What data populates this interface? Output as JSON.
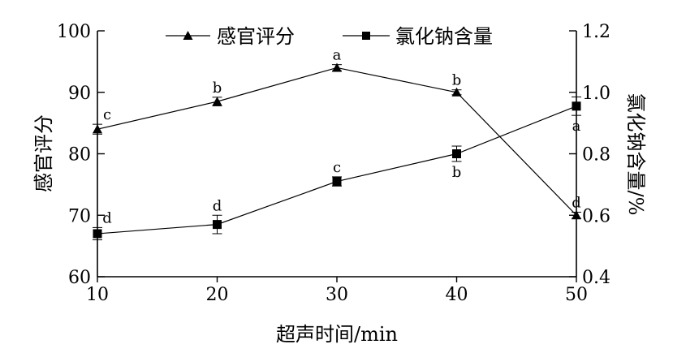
{
  "chart_data": {
    "type": "line",
    "xlabel": "超声时间/min",
    "ylabel_left": "感官评分",
    "ylabel_right": "氯化钠含量/%",
    "x": [
      10,
      20,
      30,
      40,
      50
    ],
    "x_ticks": [
      "10",
      "20",
      "30",
      "40",
      "50"
    ],
    "y_left_range": [
      60,
      100
    ],
    "y_left_ticks": [
      "60",
      "70",
      "80",
      "90",
      "100"
    ],
    "y_right_range": [
      0.4,
      1.2
    ],
    "y_right_ticks": [
      "0.4",
      "0.6",
      "0.8",
      "1.0",
      "1.2"
    ],
    "legend_position": "top",
    "grid": false,
    "series": [
      {
        "name": "感官评分",
        "axis": "left",
        "marker": "triangle",
        "values": [
          84.0,
          88.5,
          94.0,
          90.0,
          70.0
        ],
        "errors": [
          0.8,
          0.7,
          0.5,
          0.4,
          0.5
        ],
        "labels": [
          "c",
          "b",
          "a",
          "b",
          "d"
        ],
        "label_positions": [
          "above",
          "above",
          "above",
          "above",
          "above"
        ]
      },
      {
        "name": "氯化钠含量",
        "axis": "right",
        "marker": "square",
        "values": [
          0.54,
          0.57,
          0.71,
          0.8,
          0.955
        ],
        "errors": [
          0.02,
          0.03,
          0.015,
          0.025,
          0.03
        ],
        "labels": [
          "d",
          "d",
          "c",
          "b",
          "a"
        ],
        "label_positions": [
          "above",
          "above",
          "above",
          "below",
          "below"
        ]
      }
    ]
  }
}
